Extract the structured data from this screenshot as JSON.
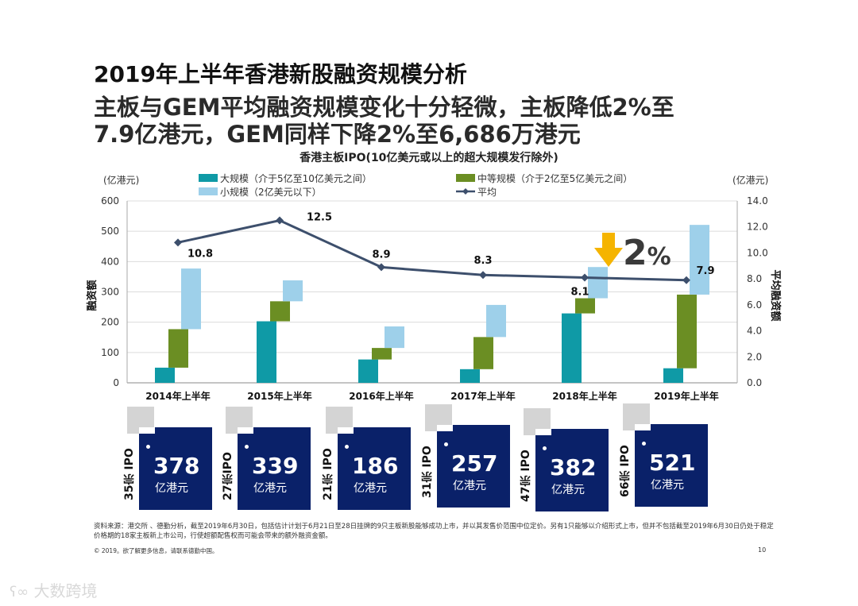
{
  "title": {
    "line1": "2019年上半年香港新股融资规模分析",
    "line2": "主板与GEM平均融资规模变化十分轻微，主板降低2%至",
    "line3": "7.9亿港元，GEM同样下降2%至6,686万港元"
  },
  "chart_data": {
    "type": "bar+line",
    "title": "香港主板IPO(10亿美元或以上的超大规模发行除外)",
    "categories": [
      "2014年上半年",
      "2015年上半年",
      "2016年上半年",
      "2017年上半年",
      "2018年上半年",
      "2019年上半年"
    ],
    "left_axis": {
      "label": "融资额",
      "unit": "(亿港元)",
      "range": [
        0,
        600
      ],
      "ticks": [
        "0",
        "100",
        "200",
        "300",
        "400",
        "500",
        "600"
      ]
    },
    "right_axis": {
      "label": "平均融资额",
      "unit": "(亿港元)",
      "range": [
        0,
        14
      ],
      "ticks": [
        "0.0",
        "2.0",
        "4.0",
        "6.0",
        "8.0",
        "10.0",
        "12.0",
        "14.0"
      ]
    },
    "series": [
      {
        "name": "大规模（介于5亿至10亿美元之间）",
        "color": "#0f9aa6",
        "values": [
          50,
          203,
          77,
          45,
          229,
          48
        ]
      },
      {
        "name": "中等规模（介于2亿至5亿美元之间）",
        "color": "#6b8e23",
        "values": [
          127,
          66,
          38,
          106,
          50,
          243
        ]
      },
      {
        "name": "小规模（2亿美元以下）",
        "color": "#9ed0ea",
        "values": [
          200,
          69,
          71,
          106,
          103,
          230
        ]
      },
      {
        "name": "平均",
        "color": "#3d4f6c",
        "type": "line",
        "values": [
          10.8,
          12.5,
          8.9,
          8.3,
          8.1,
          7.9
        ],
        "labels": [
          "10.8",
          "12.5",
          "8.9",
          "8.3",
          "8.1",
          "7.9"
        ]
      }
    ],
    "annotation": "2%"
  },
  "cards": [
    {
      "count": "35宗 IPO",
      "value": "378",
      "unit": "亿港元"
    },
    {
      "count": "27宗IPO",
      "value": "339",
      "unit": "亿港元"
    },
    {
      "count": "21宗 IPO",
      "value": "186",
      "unit": "亿港元"
    },
    {
      "count": "31宗 IPO",
      "value": "257",
      "unit": "亿港元"
    },
    {
      "count": "47宗 IPO",
      "value": "382",
      "unit": "亿港元"
    },
    {
      "count": "66宗 IPO",
      "value": "521",
      "unit": "亿港元"
    }
  ],
  "footnote": "资料来源：港交所 、德勤分析，截至2019年6月30日，包括估计计划于6月21日至28日挂牌的9只主板新股能够成功上市，并以其发售价范围中位定价。另有1只能够以介绍形式上市，但并不包括截至2019年6月30日仍处于稳定价格期的18家主板新上市公司，行使超额配售权而可能会带来的额外融资金额。",
  "copyright": "© 2019。欲了解更多信息，请联系德勤中国。",
  "page_number": "10",
  "watermark": "大数跨境"
}
